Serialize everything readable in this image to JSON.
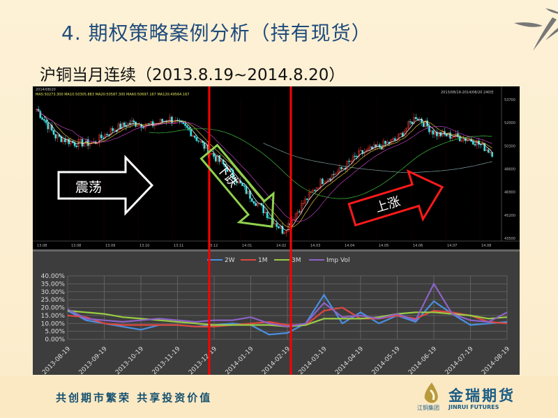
{
  "slide": {
    "title": "4. 期权策略案例分析（持有现货）",
    "subtitle": "沪铜当月连续（2013.8.19~2014.8.20）"
  },
  "annotations": {
    "range_arrow": "震荡",
    "down_arrow": "下跌",
    "up_arrow": "上涨"
  },
  "footer": {
    "slogan": "共创期市繁荣  共享投资价值",
    "logo_cn": "金瑞期货",
    "logo_en": "JINRUI FUTURES",
    "logo_group": "江铜集团"
  },
  "colors": {
    "title": "#1f4a7a",
    "red_line": "#ff0000",
    "down_arrow": "#8fd14f",
    "up_arrow": "#ff1a1a",
    "candle_up": "#e03030",
    "candle_down": "#40e0e0"
  },
  "chart_data": [
    {
      "type": "candlestick",
      "header_left": "MA5:50273.300  MA10:50305.883  MA20:50587.300  MA60:50697.167  MA120:49564.167",
      "header_right": "2013/08/19-2014/08/20 240日",
      "x_tick_labels": [
        "13.08",
        "13.08",
        "13.09",
        "13.10",
        "13.11",
        "13.12",
        "14.01",
        "14.02",
        "14.03",
        "14.04",
        "14.05",
        "14.06",
        "14.07",
        "14.08"
      ],
      "y_tick_labels": [
        "53700",
        "52000",
        "50300",
        "48600",
        "46900",
        "45200",
        "43500"
      ],
      "ylim": [
        43500,
        53700
      ],
      "approx_closes": [
        53000,
        51000,
        50500,
        50500,
        51500,
        52000,
        51800,
        52300,
        51500,
        50000,
        48700,
        47000,
        45500,
        44000,
        46000,
        47700,
        48500,
        49700,
        50200,
        50800,
        52500,
        51200,
        51000,
        50700,
        49800
      ],
      "moving_averages": [
        "MA5",
        "MA10",
        "MA20",
        "MA60",
        "MA120"
      ]
    },
    {
      "type": "line",
      "legend": [
        "2W",
        "1M",
        "3M",
        "Imp Vol"
      ],
      "legend_position": "top",
      "x": [
        "2013-08-19",
        "2013-09-03",
        "2013-09-19",
        "2013-10-04",
        "2013-10-19",
        "2013-11-03",
        "2013-11-19",
        "2013-12-04",
        "2013-12-19",
        "2014-01-03",
        "2014-01-19",
        "2014-02-03",
        "2014-02-19",
        "2014-03-04",
        "2014-03-19",
        "2014-04-04",
        "2014-04-19",
        "2014-05-04",
        "2014-05-19",
        "2014-06-04",
        "2014-06-19",
        "2014-07-04",
        "2014-07-19",
        "2014-08-04",
        "2014-08-19"
      ],
      "x_tick_labels": [
        "2013-08-19",
        "2013-09-19",
        "2013-10-19",
        "2013-11-19",
        "2013-12-19",
        "2014-01-19",
        "2014-02-19",
        "2014-03-19",
        "2014-04-19",
        "2014-05-19",
        "2014-06-19",
        "2014-07-19",
        "2014-08-19"
      ],
      "y_tick_labels": [
        "40.00%",
        "35.00%",
        "30.00%",
        "25.00%",
        "20.00%",
        "15.00%",
        "10.00%",
        "5.00%",
        "0.00%"
      ],
      "ylim": [
        0,
        40
      ],
      "grid": true,
      "series": [
        {
          "name": "2W",
          "color": "#4a90e2",
          "values": [
            18,
            12,
            10,
            8,
            6,
            9,
            9,
            8,
            9,
            10,
            9,
            3,
            4,
            10,
            28,
            10,
            17,
            10,
            15,
            11,
            24,
            16,
            9,
            10,
            11
          ]
        },
        {
          "name": "1M",
          "color": "#e0473f",
          "values": [
            15,
            14,
            10,
            9,
            9,
            9,
            9,
            8,
            8,
            9,
            10,
            11,
            9,
            9,
            18,
            20,
            13,
            13,
            15,
            13,
            18,
            17,
            15,
            11,
            10
          ]
        },
        {
          "name": "3M",
          "color": "#9acd45",
          "values": [
            18,
            17,
            16,
            14,
            13,
            12,
            11,
            10,
            9,
            9,
            9,
            9,
            8,
            9,
            13,
            13,
            13,
            14,
            16,
            17,
            17,
            16,
            15,
            13,
            14
          ]
        },
        {
          "name": "Imp Vol",
          "color": "#8e63c9",
          "values": [
            19,
            13,
            12,
            11,
            12,
            13,
            12,
            11,
            12,
            12,
            14,
            10,
            8,
            10,
            23,
            14,
            15,
            13,
            16,
            12,
            35,
            16,
            12,
            11,
            17
          ]
        }
      ]
    }
  ]
}
